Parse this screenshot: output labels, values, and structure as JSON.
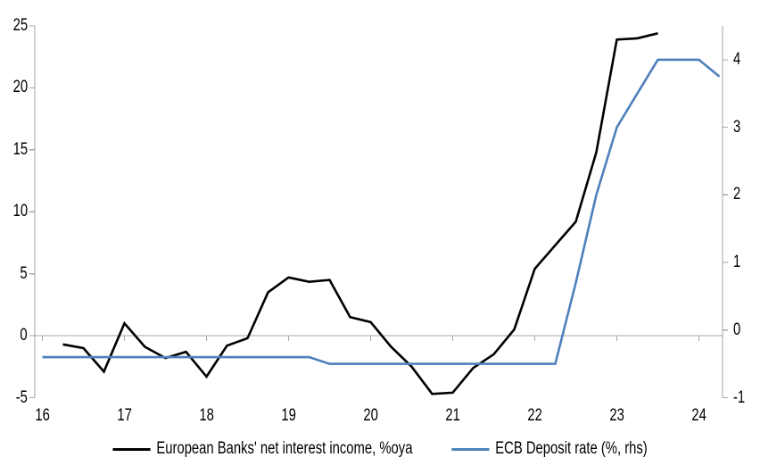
{
  "chart_data": {
    "type": "line",
    "title": "",
    "grid": "zero-line-only",
    "legend_position": "bottom",
    "axis_color": "#a6a6a6",
    "text_color": "#000000",
    "background": "#ffffff",
    "x_axis": {
      "ticks": [
        16,
        17,
        18,
        19,
        20,
        21,
        22,
        23,
        24
      ],
      "range": [
        16,
        24.3
      ]
    },
    "left_axis": {
      "ticks": [
        -5,
        0,
        5,
        10,
        15,
        20,
        25
      ],
      "range": [
        -5,
        25
      ]
    },
    "right_axis": {
      "ticks": [
        -1,
        0,
        1,
        2,
        3,
        4
      ],
      "range": [
        -1,
        4.5
      ]
    },
    "series": [
      {
        "name": "European Banks' net interest income, %oya",
        "axis": "left",
        "color": "#000000",
        "points": [
          [
            16.25,
            -0.7
          ],
          [
            16.5,
            -1.0
          ],
          [
            16.75,
            -2.9
          ],
          [
            17.0,
            1.0
          ],
          [
            17.25,
            -0.9
          ],
          [
            17.5,
            -1.8
          ],
          [
            17.75,
            -1.3
          ],
          [
            18.0,
            -3.3
          ],
          [
            18.25,
            -0.8
          ],
          [
            18.5,
            -0.2
          ],
          [
            18.75,
            3.5
          ],
          [
            19.0,
            4.7
          ],
          [
            19.25,
            4.35
          ],
          [
            19.5,
            4.5
          ],
          [
            19.75,
            1.5
          ],
          [
            20.0,
            1.1
          ],
          [
            20.25,
            -0.9
          ],
          [
            20.5,
            -2.5
          ],
          [
            20.75,
            -4.7
          ],
          [
            21.0,
            -4.6
          ],
          [
            21.25,
            -2.6
          ],
          [
            21.5,
            -1.5
          ],
          [
            21.75,
            0.5
          ],
          [
            22.0,
            5.4
          ],
          [
            22.25,
            7.3
          ],
          [
            22.5,
            9.2
          ],
          [
            22.75,
            14.8
          ],
          [
            23.0,
            23.9
          ],
          [
            23.25,
            24.0
          ],
          [
            23.5,
            24.4
          ]
        ]
      },
      {
        "name": "ECB Deposit rate (%, rhs)",
        "axis": "right",
        "color": "#4e80bc",
        "points": [
          [
            16.0,
            -0.4
          ],
          [
            16.25,
            -0.4
          ],
          [
            16.5,
            -0.4
          ],
          [
            16.75,
            -0.4
          ],
          [
            17.0,
            -0.4
          ],
          [
            17.25,
            -0.4
          ],
          [
            17.5,
            -0.4
          ],
          [
            17.75,
            -0.4
          ],
          [
            18.0,
            -0.4
          ],
          [
            18.25,
            -0.4
          ],
          [
            18.5,
            -0.4
          ],
          [
            18.75,
            -0.4
          ],
          [
            19.0,
            -0.4
          ],
          [
            19.25,
            -0.4
          ],
          [
            19.5,
            -0.5
          ],
          [
            19.75,
            -0.5
          ],
          [
            20.0,
            -0.5
          ],
          [
            20.25,
            -0.5
          ],
          [
            20.5,
            -0.5
          ],
          [
            20.75,
            -0.5
          ],
          [
            21.0,
            -0.5
          ],
          [
            21.25,
            -0.5
          ],
          [
            21.5,
            -0.5
          ],
          [
            21.75,
            -0.5
          ],
          [
            22.0,
            -0.5
          ],
          [
            22.25,
            -0.5
          ],
          [
            22.5,
            0.7
          ],
          [
            22.75,
            2.0
          ],
          [
            23.0,
            3.0
          ],
          [
            23.25,
            3.5
          ],
          [
            23.5,
            4.0
          ],
          [
            23.75,
            4.0
          ],
          [
            24.0,
            4.0
          ],
          [
            24.25,
            3.75
          ]
        ]
      }
    ]
  }
}
